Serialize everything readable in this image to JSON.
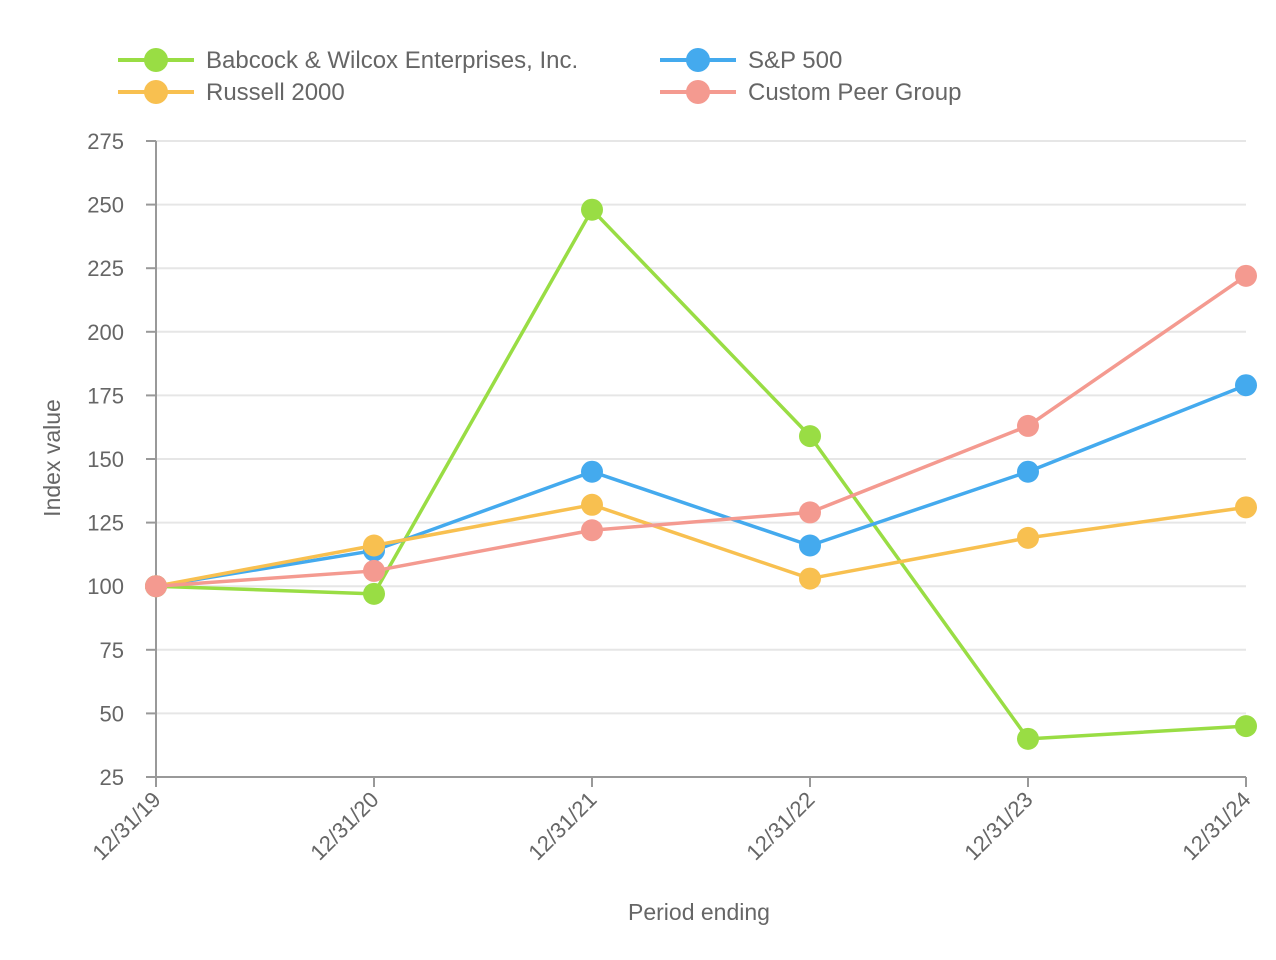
{
  "chart_data": {
    "type": "line",
    "title": "",
    "xlabel": "Period ending",
    "ylabel": "Index value",
    "categories": [
      "12/31/19",
      "12/31/20",
      "12/31/21",
      "12/31/22",
      "12/31/23",
      "12/31/24"
    ],
    "ylim": [
      25,
      275
    ],
    "yticks": [
      25,
      50,
      75,
      100,
      125,
      150,
      175,
      200,
      225,
      250,
      275
    ],
    "grid": true,
    "legend_position": "top",
    "series": [
      {
        "name": "Babcock & Wilcox Enterprises, Inc.",
        "color": "#99dd44",
        "values": [
          100,
          97,
          248,
          159,
          40,
          45
        ]
      },
      {
        "name": "S&P 500",
        "color": "#44aaee",
        "values": [
          100,
          114,
          145,
          116,
          145,
          179
        ]
      },
      {
        "name": "Russell 2000",
        "color": "#f8c050",
        "values": [
          100,
          116,
          132,
          103,
          119,
          131
        ]
      },
      {
        "name": "Custom Peer Group",
        "color": "#f49a90",
        "values": [
          100,
          106,
          122,
          129,
          163,
          222
        ]
      }
    ]
  }
}
